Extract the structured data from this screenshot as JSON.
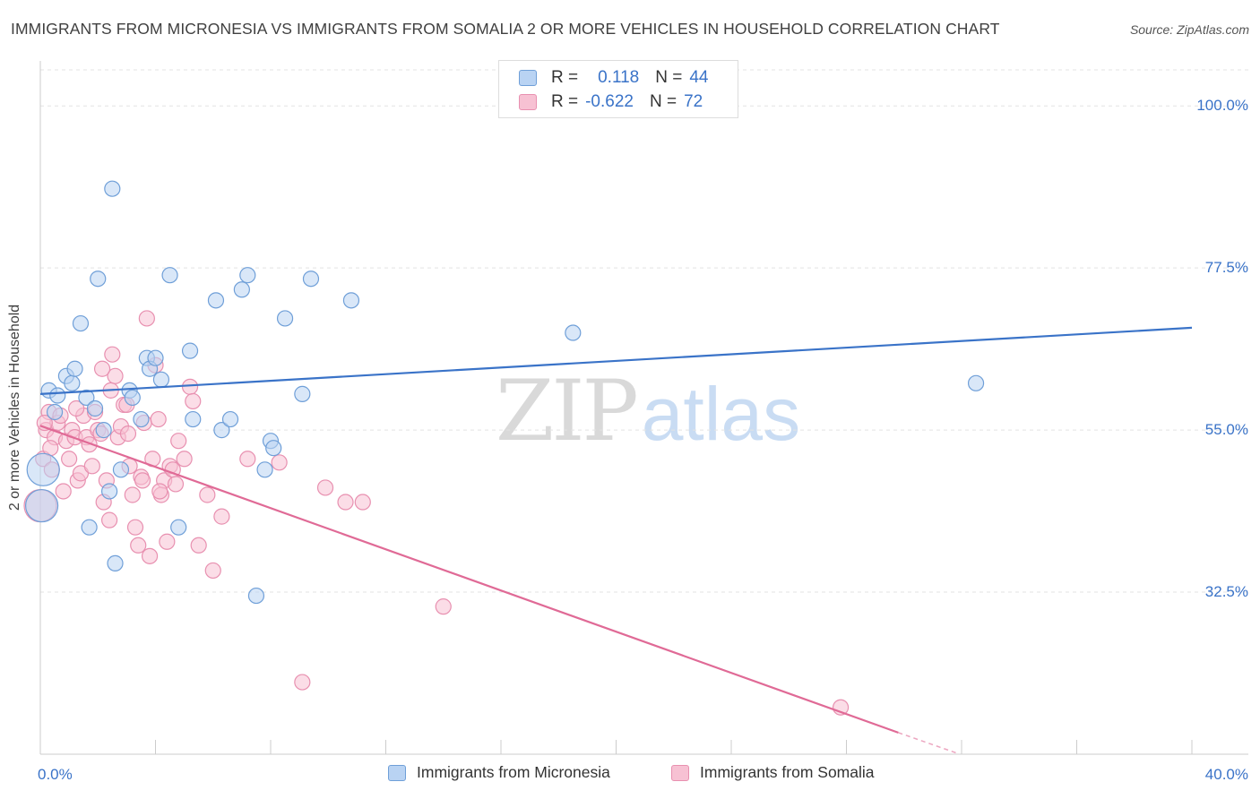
{
  "title": "IMMIGRANTS FROM MICRONESIA VS IMMIGRANTS FROM SOMALIA 2 OR MORE VEHICLES IN HOUSEHOLD CORRELATION CHART",
  "source": "Source: ZipAtlas.com",
  "watermark": {
    "zip": "ZIP",
    "atlas": "atlas"
  },
  "legend_top": {
    "rows": [
      {
        "r_label": "R =",
        "r_value": "0.118",
        "n_label": "N =",
        "n_value": "44"
      },
      {
        "r_label": "R =",
        "r_value": "-0.622",
        "n_label": "N =",
        "n_value": "72"
      }
    ]
  },
  "legend_bottom": {
    "items": [
      {
        "label": "Immigrants from Micronesia"
      },
      {
        "label": "Immigrants from Somalia"
      }
    ]
  },
  "colors": {
    "micronesia_fill": "#b9d3f3",
    "micronesia_stroke": "#6f9fd8",
    "micronesia_line": "#3a73c8",
    "somalia_fill": "#f7c1d3",
    "somalia_stroke": "#e890b0",
    "somalia_line": "#e06a96",
    "axis_tick_text": "#3a73c8",
    "grid": "#e3e3e3"
  },
  "chart_data": {
    "type": "scatter",
    "title": "IMMIGRANTS FROM MICRONESIA VS IMMIGRANTS FROM SOMALIA 2 OR MORE VEHICLES IN HOUSEHOLD CORRELATION CHART",
    "xlabel": "",
    "ylabel": "2 or more Vehicles in Household",
    "xlim": [
      0,
      40
    ],
    "ylim": [
      10,
      105
    ],
    "x_tick_labels": [
      "0.0%",
      "40.0%"
    ],
    "y_ticks": [
      32.5,
      55.0,
      77.5,
      100.0
    ],
    "y_tick_labels": [
      "32.5%",
      "55.0%",
      "77.5%",
      "100.0%"
    ],
    "grid": true,
    "legend_position": "top-center",
    "series": [
      {
        "name": "Immigrants from Micronesia",
        "R": 0.118,
        "N": 44,
        "trend": {
          "x": [
            0,
            40
          ],
          "y": [
            60.0,
            69.2
          ]
        },
        "points": [
          [
            0.1,
            49.5
          ],
          [
            0.3,
            60.5
          ],
          [
            0.5,
            57.5
          ],
          [
            0.6,
            59.8
          ],
          [
            0.9,
            62.5
          ],
          [
            1.1,
            61.5
          ],
          [
            1.2,
            63.5
          ],
          [
            1.4,
            69.8
          ],
          [
            1.6,
            59.5
          ],
          [
            1.7,
            41.5
          ],
          [
            1.9,
            58.0
          ],
          [
            2.0,
            76.0
          ],
          [
            2.2,
            55.0
          ],
          [
            2.4,
            46.5
          ],
          [
            2.5,
            88.5
          ],
          [
            2.6,
            36.5
          ],
          [
            2.8,
            49.5
          ],
          [
            3.1,
            60.5
          ],
          [
            3.2,
            59.5
          ],
          [
            3.5,
            56.5
          ],
          [
            3.7,
            65.0
          ],
          [
            3.8,
            63.5
          ],
          [
            4.0,
            65.0
          ],
          [
            4.2,
            62.0
          ],
          [
            4.5,
            76.5
          ],
          [
            4.8,
            41.5
          ],
          [
            5.2,
            66.0
          ],
          [
            5.3,
            56.5
          ],
          [
            6.1,
            73.0
          ],
          [
            6.3,
            55.0
          ],
          [
            6.6,
            56.5
          ],
          [
            7.0,
            74.5
          ],
          [
            7.2,
            76.5
          ],
          [
            7.5,
            32.0
          ],
          [
            7.8,
            49.5
          ],
          [
            8.0,
            53.5
          ],
          [
            8.1,
            52.5
          ],
          [
            8.5,
            70.5
          ],
          [
            9.1,
            60.0
          ],
          [
            9.4,
            76.0
          ],
          [
            10.8,
            73.0
          ],
          [
            18.5,
            68.5
          ],
          [
            32.5,
            61.5
          ],
          [
            0.05,
            44.5
          ]
        ]
      },
      {
        "name": "Immigrants from Somalia",
        "R": -0.622,
        "N": 72,
        "trend": {
          "x": [
            0,
            29.8
          ],
          "y": [
            55.6,
            13.0
          ]
        },
        "trend_dashed": {
          "x": [
            29.8,
            31.8
          ],
          "y": [
            13.0,
            10.2
          ]
        },
        "points": [
          [
            0.0,
            44.5
          ],
          [
            0.1,
            51.0
          ],
          [
            0.2,
            55.0
          ],
          [
            0.3,
            57.5
          ],
          [
            0.4,
            49.5
          ],
          [
            0.5,
            54.0
          ],
          [
            0.6,
            56.0
          ],
          [
            0.7,
            57.0
          ],
          [
            0.8,
            46.5
          ],
          [
            0.9,
            53.5
          ],
          [
            1.0,
            51.0
          ],
          [
            1.1,
            55.0
          ],
          [
            1.2,
            54.0
          ],
          [
            1.3,
            48.0
          ],
          [
            1.4,
            49.0
          ],
          [
            1.5,
            57.0
          ],
          [
            1.6,
            54.0
          ],
          [
            1.7,
            53.0
          ],
          [
            1.8,
            50.0
          ],
          [
            1.9,
            57.5
          ],
          [
            2.0,
            55.0
          ],
          [
            2.1,
            54.5
          ],
          [
            2.2,
            45.0
          ],
          [
            2.3,
            48.0
          ],
          [
            2.4,
            42.5
          ],
          [
            2.5,
            65.5
          ],
          [
            2.6,
            62.5
          ],
          [
            2.7,
            54.0
          ],
          [
            2.8,
            55.5
          ],
          [
            2.9,
            58.5
          ],
          [
            3.0,
            58.5
          ],
          [
            3.1,
            50.0
          ],
          [
            3.2,
            46.0
          ],
          [
            3.3,
            41.5
          ],
          [
            3.4,
            39.0
          ],
          [
            3.5,
            48.5
          ],
          [
            3.6,
            56.0
          ],
          [
            3.7,
            70.5
          ],
          [
            3.8,
            37.5
          ],
          [
            3.9,
            51.0
          ],
          [
            4.0,
            64.0
          ],
          [
            4.1,
            56.5
          ],
          [
            4.2,
            46.0
          ],
          [
            4.3,
            48.0
          ],
          [
            4.4,
            39.5
          ],
          [
            4.5,
            50.0
          ],
          [
            4.6,
            49.5
          ],
          [
            4.7,
            47.5
          ],
          [
            4.8,
            53.5
          ],
          [
            5.0,
            51.0
          ],
          [
            5.2,
            61.0
          ],
          [
            5.3,
            59.0
          ],
          [
            5.5,
            39.0
          ],
          [
            5.8,
            46.0
          ],
          [
            6.0,
            35.5
          ],
          [
            6.3,
            43.0
          ],
          [
            7.2,
            51.0
          ],
          [
            8.3,
            50.5
          ],
          [
            9.1,
            20.0
          ],
          [
            9.9,
            47.0
          ],
          [
            10.6,
            45.0
          ],
          [
            11.2,
            45.0
          ],
          [
            14.0,
            30.5
          ],
          [
            27.8,
            16.5
          ],
          [
            0.15,
            56.0
          ],
          [
            0.35,
            52.5
          ],
          [
            1.25,
            58.0
          ],
          [
            2.45,
            60.5
          ],
          [
            3.05,
            54.5
          ],
          [
            3.55,
            48.0
          ],
          [
            2.15,
            63.5
          ],
          [
            4.15,
            46.5
          ]
        ]
      }
    ]
  }
}
